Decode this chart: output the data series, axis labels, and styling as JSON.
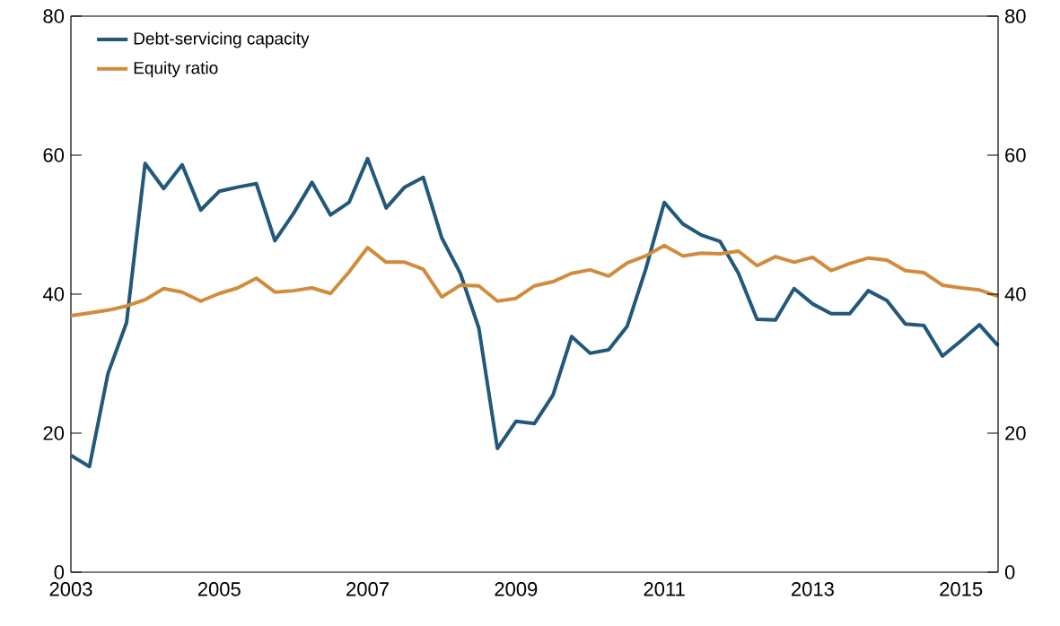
{
  "chart_data": {
    "type": "line",
    "x": [
      2003.0,
      2003.25,
      2003.5,
      2003.75,
      2004.0,
      2004.25,
      2004.5,
      2004.75,
      2005.0,
      2005.25,
      2005.5,
      2005.75,
      2006.0,
      2006.25,
      2006.5,
      2006.75,
      2007.0,
      2007.25,
      2007.5,
      2007.75,
      2008.0,
      2008.25,
      2008.5,
      2008.75,
      2009.0,
      2009.25,
      2009.5,
      2009.75,
      2010.0,
      2010.25,
      2010.5,
      2010.75,
      2011.0,
      2011.25,
      2011.5,
      2011.75,
      2012.0,
      2012.25,
      2012.5,
      2012.75,
      2013.0,
      2013.25,
      2013.5,
      2013.75,
      2014.0,
      2014.25,
      2014.5,
      2014.75,
      2015.0,
      2015.25,
      2015.5
    ],
    "series": [
      {
        "name": "Debt-servicing capacity",
        "color": "#22587a",
        "values": [
          16.8,
          15.2,
          28.6,
          35.9,
          58.8,
          55.2,
          58.6,
          52.1,
          54.8,
          55.4,
          55.9,
          47.7,
          51.6,
          56.1,
          51.4,
          53.2,
          59.5,
          52.4,
          55.4,
          56.8,
          48.1,
          43.0,
          35.1,
          17.8,
          21.7,
          21.4,
          25.5,
          33.9,
          31.5,
          32.0,
          35.4,
          43.6,
          53.2,
          50.1,
          48.5,
          47.6,
          43.0,
          36.4,
          36.3,
          40.8,
          38.6,
          37.2,
          37.2,
          40.5,
          39.1,
          35.7,
          35.5,
          31.1,
          33.3,
          35.6,
          32.6
        ]
      },
      {
        "name": "Equity ratio",
        "color": "#d08c3c",
        "values": [
          36.9,
          37.3,
          37.7,
          38.3,
          39.2,
          40.8,
          40.3,
          39.0,
          40.1,
          40.9,
          42.3,
          40.3,
          40.5,
          40.9,
          40.1,
          43.2,
          46.7,
          44.6,
          44.6,
          43.6,
          39.6,
          41.3,
          41.2,
          39.0,
          39.4,
          41.2,
          41.8,
          43.0,
          43.5,
          42.6,
          44.5,
          45.5,
          47.0,
          45.5,
          45.9,
          45.8,
          46.2,
          44.1,
          45.4,
          44.6,
          45.3,
          43.4,
          44.4,
          45.2,
          44.9,
          43.4,
          43.1,
          41.3,
          40.9,
          40.6,
          39.7
        ]
      }
    ],
    "xlim": [
      2003,
      2015.5
    ],
    "xticks": [
      2003,
      2005,
      2007,
      2009,
      2011,
      2013,
      2015
    ],
    "ylim": [
      0,
      80
    ],
    "yticks": [
      0,
      20,
      40,
      60,
      80
    ],
    "y2lim": [
      0,
      80
    ],
    "y2ticks": [
      0,
      20,
      40,
      60,
      80
    ],
    "legend": "top left",
    "grid": false,
    "marker": "none",
    "line_style": "solid"
  }
}
